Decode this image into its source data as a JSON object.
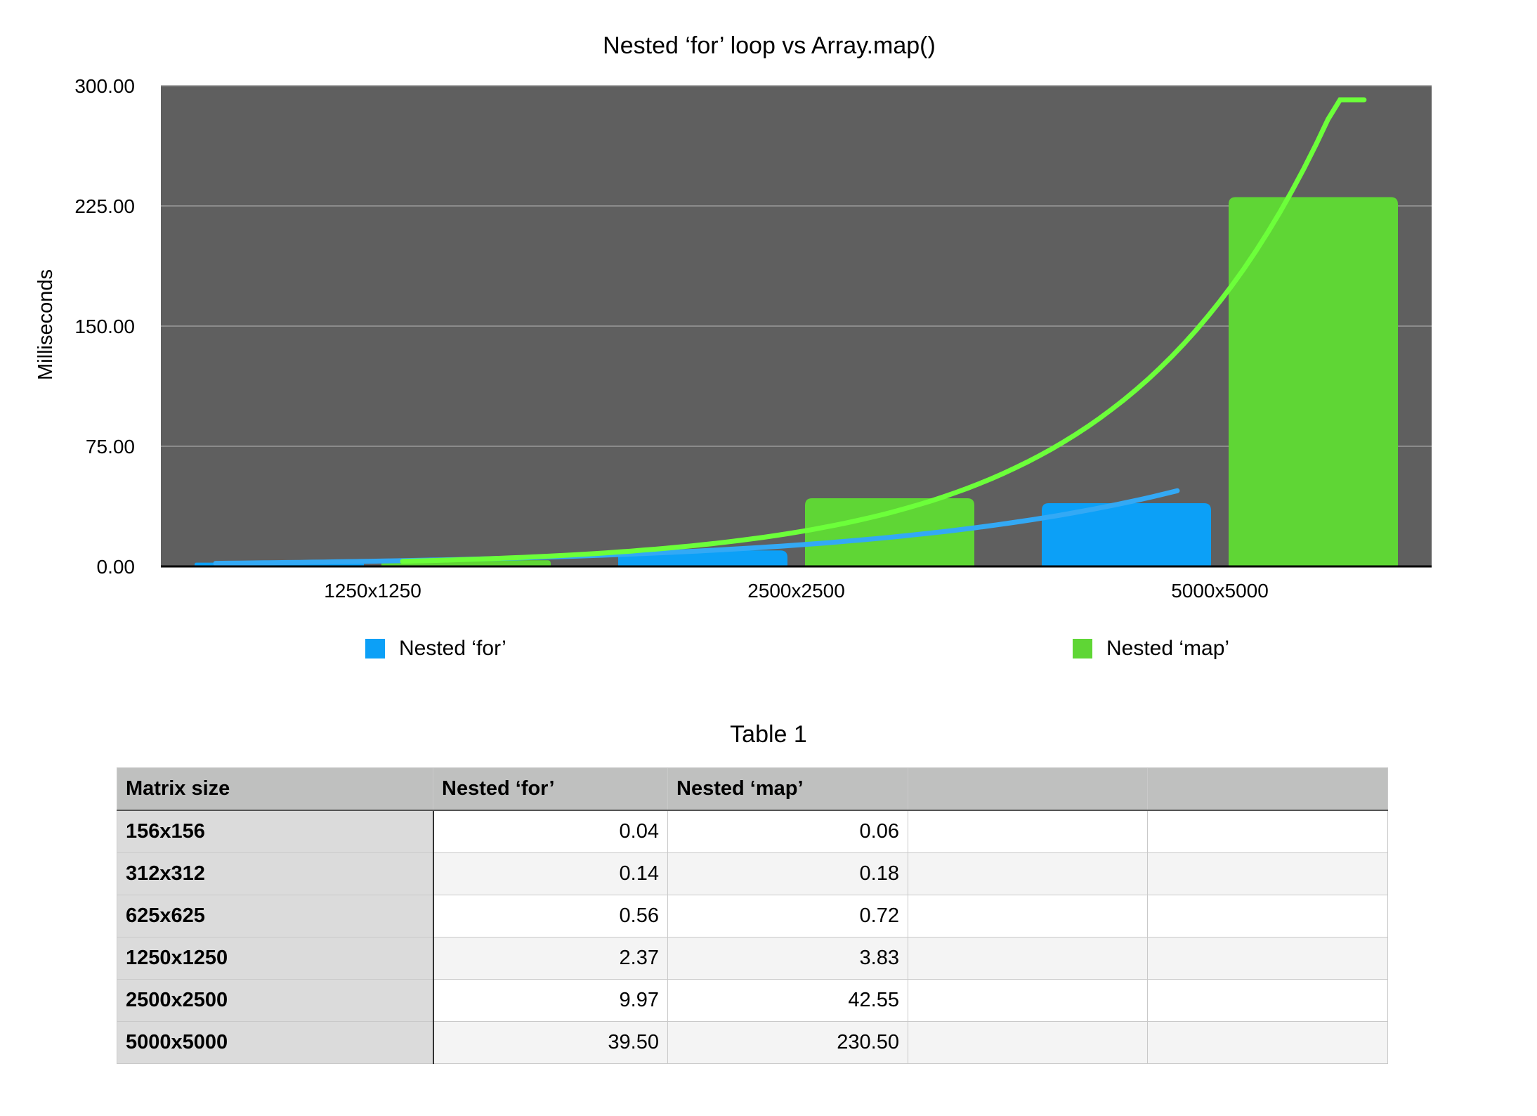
{
  "chart_data": {
    "type": "bar",
    "title": "Nested ‘for’ loop vs Array.map()",
    "xlabel": "",
    "ylabel": "Milliseconds",
    "categories": [
      "1250x1250",
      "2500x2500",
      "5000x5000"
    ],
    "series": [
      {
        "name": "Nested ‘for’",
        "values": [
          2.37,
          9.97,
          39.5
        ],
        "color": "#0ca0f7"
      },
      {
        "name": "Nested ‘map’",
        "values": [
          3.83,
          42.55,
          230.5
        ],
        "color": "#5fd635"
      }
    ],
    "trendlines": [
      {
        "series": "Nested ‘for’",
        "color": "#33a9f5",
        "type": "exponential"
      },
      {
        "series": "Nested ‘map’",
        "color": "#6cff3a",
        "type": "exponential"
      }
    ],
    "ylim": [
      0,
      300
    ],
    "yticks": [
      "0.00",
      "75.00",
      "150.00",
      "225.00",
      "300.00"
    ],
    "grid": true,
    "legend": "bottom",
    "plot_background": "#5f5f5f"
  },
  "table": {
    "title": "Table 1",
    "headers": [
      "Matrix size",
      "Nested ‘for’",
      "Nested ‘map’",
      "",
      ""
    ],
    "rows": [
      [
        "156x156",
        "0.04",
        "0.06",
        "",
        ""
      ],
      [
        "312x312",
        "0.14",
        "0.18",
        "",
        ""
      ],
      [
        "625x625",
        "0.56",
        "0.72",
        "",
        ""
      ],
      [
        "1250x1250",
        "2.37",
        "3.83",
        "",
        ""
      ],
      [
        "2500x2500",
        "9.97",
        "42.55",
        "",
        ""
      ],
      [
        "5000x5000",
        "39.50",
        "230.50",
        "",
        ""
      ]
    ]
  }
}
